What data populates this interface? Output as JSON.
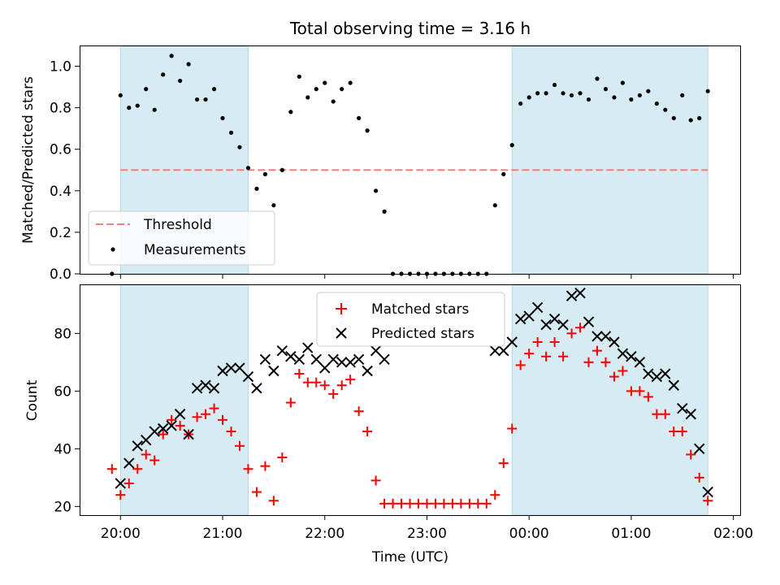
{
  "figure": {
    "title": "Total observing time = 3.16 h"
  },
  "colors": {
    "span": "#add8e6",
    "threshold": "#f08080",
    "matched": "#ff0000",
    "predicted": "#000000",
    "measurement": "#000000"
  },
  "chart_data": [
    {
      "type": "scatter",
      "panel": "top",
      "ylabel": "Matched/Predicted stars",
      "xlabel": "",
      "xlim": [
        "19:36",
        "02:04"
      ],
      "ylim": [
        0,
        1.1
      ],
      "yticks": [
        "0.0",
        "0.2",
        "0.4",
        "0.6",
        "0.8",
        "1.0"
      ],
      "shaded_spans": [
        [
          "20:00",
          "21:15"
        ],
        [
          "23:50",
          "01:45"
        ]
      ],
      "threshold": {
        "y": 0.5,
        "from": "20:00",
        "to": "01:45",
        "style": "dashed"
      },
      "legend": {
        "placement": "lower-left",
        "entries": [
          "Threshold",
          "Measurements"
        ]
      },
      "series": [
        {
          "name": "Measurements",
          "x": [
            "19:55",
            "20:00",
            "20:05",
            "20:10",
            "20:15",
            "20:20",
            "20:25",
            "20:30",
            "20:35",
            "20:40",
            "20:45",
            "20:50",
            "20:55",
            "21:00",
            "21:05",
            "21:10",
            "21:15",
            "21:20",
            "21:25",
            "21:30",
            "21:35",
            "21:40",
            "21:45",
            "21:50",
            "21:55",
            "22:00",
            "22:05",
            "22:10",
            "22:15",
            "22:20",
            "22:25",
            "22:30",
            "22:35",
            "22:40",
            "22:45",
            "22:50",
            "22:55",
            "23:00",
            "23:05",
            "23:10",
            "23:15",
            "23:20",
            "23:25",
            "23:30",
            "23:35",
            "23:40",
            "23:45",
            "23:50",
            "23:55",
            "00:00",
            "00:05",
            "00:10",
            "00:15",
            "00:20",
            "00:25",
            "00:30",
            "00:35",
            "00:40",
            "00:45",
            "00:50",
            "00:55",
            "01:00",
            "01:05",
            "01:10",
            "01:15",
            "01:20",
            "01:25",
            "01:30",
            "01:35",
            "01:40",
            "01:45"
          ],
          "y": [
            0.0,
            0.86,
            0.8,
            0.81,
            0.89,
            0.79,
            0.96,
            1.05,
            0.93,
            1.01,
            0.84,
            0.84,
            0.89,
            0.75,
            0.68,
            0.61,
            0.51,
            0.41,
            0.48,
            0.33,
            0.5,
            0.78,
            0.95,
            0.85,
            0.89,
            0.92,
            0.83,
            0.89,
            0.92,
            0.75,
            0.69,
            0.4,
            0.3,
            0.0,
            0.0,
            0.0,
            0.0,
            0.0,
            0.0,
            0.0,
            0.0,
            0.0,
            0.0,
            0.0,
            0.0,
            0.33,
            0.48,
            0.62,
            0.82,
            0.85,
            0.87,
            0.87,
            0.91,
            0.87,
            0.86,
            0.87,
            0.84,
            0.94,
            0.89,
            0.85,
            0.92,
            0.84,
            0.86,
            0.88,
            0.82,
            0.79,
            0.75,
            0.86,
            0.74,
            0.75,
            0.88
          ]
        }
      ]
    },
    {
      "type": "scatter",
      "panel": "bottom",
      "ylabel": "Count",
      "xlabel": "Time (UTC)",
      "xlim": [
        "19:36",
        "02:04"
      ],
      "ylim": [
        17,
        97
      ],
      "yticks": [
        "20",
        "40",
        "60",
        "80"
      ],
      "xticks": [
        "20:00",
        "21:00",
        "22:00",
        "23:00",
        "00:00",
        "01:00",
        "02:00"
      ],
      "shaded_spans": [
        [
          "20:00",
          "21:15"
        ],
        [
          "23:50",
          "01:45"
        ]
      ],
      "legend": {
        "placement": "top-center",
        "entries": [
          "Matched stars",
          "Predicted stars"
        ]
      },
      "series": [
        {
          "name": "Matched stars",
          "marker": "+",
          "x": [
            "19:55",
            "20:00",
            "20:05",
            "20:10",
            "20:15",
            "20:20",
            "20:25",
            "20:30",
            "20:35",
            "20:40",
            "20:45",
            "20:50",
            "20:55",
            "21:00",
            "21:05",
            "21:10",
            "21:15",
            "21:20",
            "21:25",
            "21:30",
            "21:35",
            "21:40",
            "21:45",
            "21:50",
            "21:55",
            "22:00",
            "22:05",
            "22:10",
            "22:15",
            "22:20",
            "22:25",
            "22:30",
            "22:35",
            "22:40",
            "22:45",
            "22:50",
            "22:55",
            "23:00",
            "23:05",
            "23:10",
            "23:15",
            "23:20",
            "23:25",
            "23:30",
            "23:35",
            "23:40",
            "23:45",
            "23:50",
            "23:55",
            "00:00",
            "00:05",
            "00:10",
            "00:15",
            "00:20",
            "00:25",
            "00:30",
            "00:35",
            "00:40",
            "00:45",
            "00:50",
            "00:55",
            "01:00",
            "01:05",
            "01:10",
            "01:15",
            "01:20",
            "01:25",
            "01:30",
            "01:35",
            "01:40",
            "01:45"
          ],
          "y": [
            33,
            24,
            28,
            33,
            38,
            36,
            45,
            50,
            48,
            45,
            51,
            52,
            54,
            50,
            46,
            41,
            33,
            25,
            34,
            22,
            37,
            56,
            66,
            63,
            63,
            62,
            59,
            62,
            64,
            53,
            46,
            29,
            21,
            21,
            21,
            21,
            21,
            21,
            21,
            21,
            21,
            21,
            21,
            21,
            21,
            24,
            35,
            47,
            69,
            73,
            77,
            72,
            77,
            72,
            80,
            82,
            70,
            74,
            70,
            65,
            67,
            60,
            60,
            58,
            52,
            52,
            46,
            46,
            38,
            30,
            22
          ]
        },
        {
          "name": "Predicted stars",
          "marker": "x",
          "x": [
            "20:00",
            "20:05",
            "20:10",
            "20:15",
            "20:20",
            "20:25",
            "20:30",
            "20:35",
            "20:40",
            "20:45",
            "20:50",
            "20:55",
            "21:00",
            "21:05",
            "21:10",
            "21:15",
            "21:20",
            "21:25",
            "21:30",
            "21:35",
            "21:40",
            "21:45",
            "21:50",
            "21:55",
            "22:00",
            "22:05",
            "22:10",
            "22:15",
            "22:20",
            "22:25",
            "22:30",
            "22:35",
            "23:40",
            "23:45",
            "23:50",
            "23:55",
            "00:00",
            "00:05",
            "00:10",
            "00:15",
            "00:20",
            "00:25",
            "00:30",
            "00:35",
            "00:40",
            "00:45",
            "00:50",
            "00:55",
            "01:00",
            "01:05",
            "01:10",
            "01:15",
            "01:20",
            "01:25",
            "01:30",
            "01:35",
            "01:40",
            "01:45"
          ],
          "y": [
            28,
            35,
            41,
            43,
            46,
            47,
            48,
            52,
            45,
            61,
            62,
            61,
            67,
            68,
            68,
            65,
            61,
            71,
            67,
            74,
            72,
            71,
            75,
            71,
            68,
            71,
            70,
            70,
            71,
            67,
            74,
            71,
            74,
            74,
            77,
            85,
            86,
            89,
            83,
            85,
            83,
            93,
            94,
            84,
            79,
            79,
            77,
            73,
            72,
            70,
            66,
            65,
            66,
            62,
            54,
            52,
            40,
            25
          ]
        }
      ]
    }
  ]
}
